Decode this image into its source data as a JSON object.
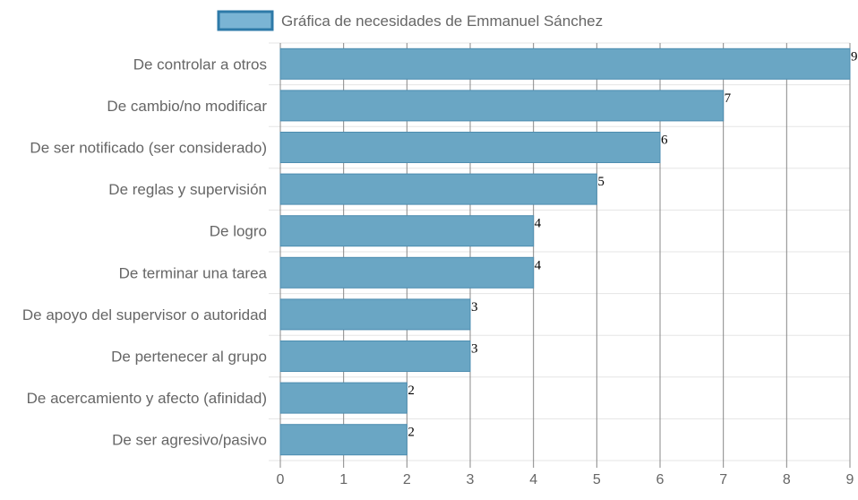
{
  "chart_data": {
    "type": "bar",
    "orientation": "horizontal",
    "categories": [
      "De controlar a otros",
      "De cambio/no modificar",
      "De ser notificado (ser considerado)",
      "De reglas y supervisión",
      "De logro",
      "De terminar una tarea",
      "De apoyo del supervisor o autoridad",
      "De pertenecer al grupo",
      "De acercamiento y afecto (afinidad)",
      "De ser agresivo/pasivo"
    ],
    "series": [
      {
        "name": "Gráfica de necesidades de Emmanuel Sánchez",
        "values": [
          9,
          7,
          6,
          5,
          4,
          4,
          3,
          3,
          2,
          2
        ]
      }
    ],
    "xlim": [
      0,
      9
    ],
    "x_ticks": [
      0,
      1,
      2,
      3,
      4,
      5,
      6,
      7,
      8,
      9
    ],
    "title": "",
    "xlabel": "",
    "ylabel": "",
    "grid": true,
    "legend_position": "top",
    "data_labels": true,
    "colors": {
      "bar_fill": "#6aa6c4",
      "bar_border": "#4d8db0",
      "legend_fill": "#7ab4d4",
      "legend_border": "#2e7aa8",
      "grid_vertical": "#888888",
      "grid_horizontal": "#e5e5e5",
      "text": "#666666"
    }
  }
}
